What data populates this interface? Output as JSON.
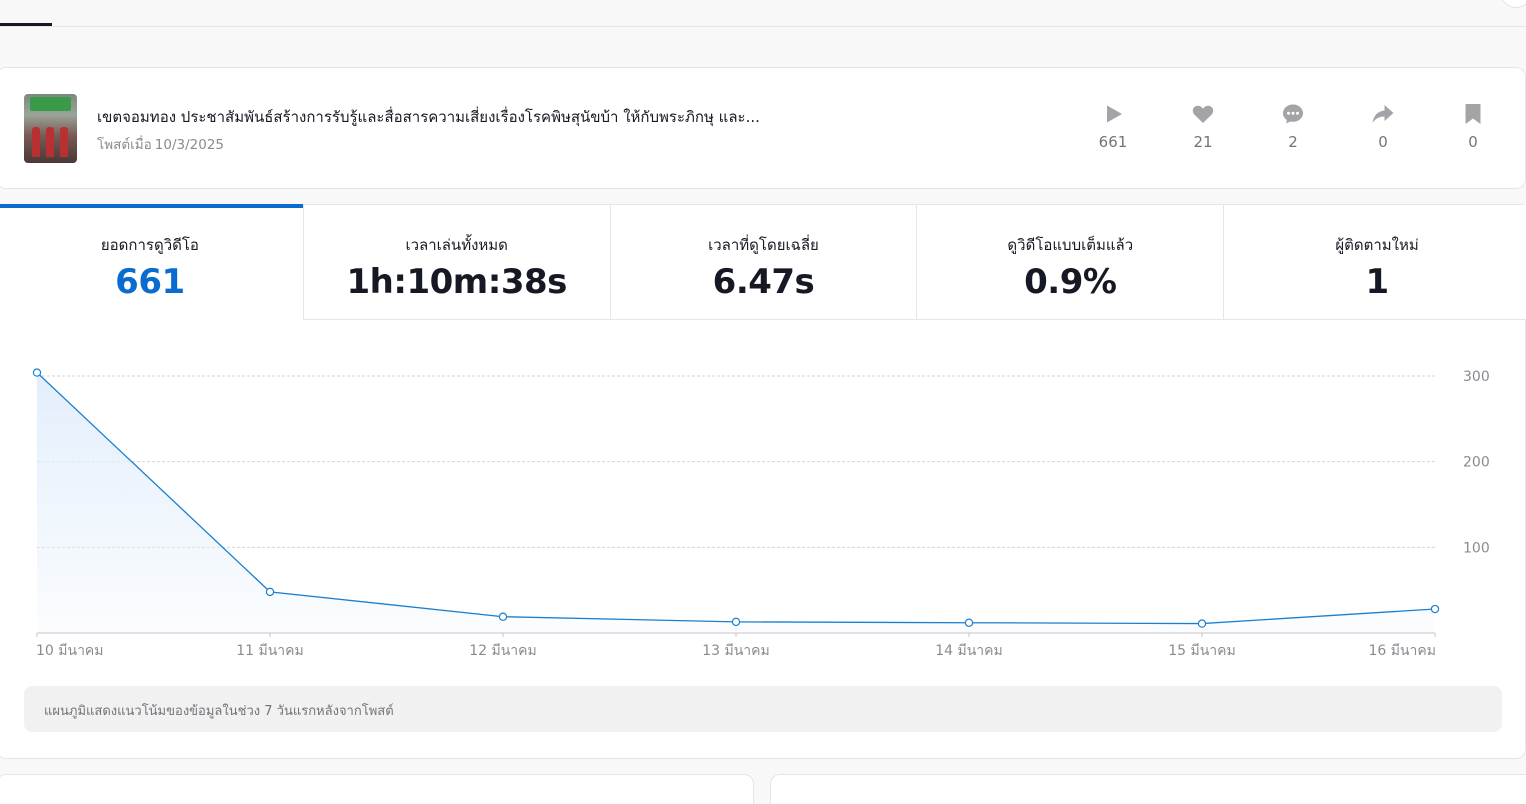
{
  "post": {
    "title": "เขตจอมทอง ประชาสัมพันธ์สร้างการรับรู้และสื่อสารความเสี่ยงเรื่องโรคพิษสุนัขบ้า ให้กับพระภิกษุ และ...",
    "date_label": "โพสต์เมื่อ",
    "date_value": "10/3/2025",
    "stats": {
      "plays": "661",
      "likes": "21",
      "comments": "2",
      "shares": "0",
      "saves": "0"
    }
  },
  "metrics": [
    {
      "label": "ยอดการดูวิดีโอ",
      "value": "661"
    },
    {
      "label": "เวลาเล่นทั้งหมด",
      "value": "1h:10m:38s"
    },
    {
      "label": "เวลาที่ดูโดยเฉลี่ย",
      "value": "6.47s"
    },
    {
      "label": "ดูวิดีโอแบบเต็มแล้ว",
      "value": "0.9%"
    },
    {
      "label": "ผู้ติดตามใหม่",
      "value": "1"
    }
  ],
  "chart_data": {
    "type": "area",
    "categories": [
      "10 มีนาคม",
      "11 มีนาคม",
      "12 มีนาคม",
      "13 มีนาคม",
      "14 มีนาคม",
      "15 มีนาคม",
      "16 มีนาคม"
    ],
    "values": [
      304,
      48,
      19,
      13,
      12,
      11,
      28
    ],
    "y_ticks": [
      100,
      200,
      300
    ],
    "ylim": [
      0,
      300
    ],
    "grid": true,
    "line_color": "#1a7fcf",
    "fill_color": "#e3eefb"
  },
  "chart_note": "แผนภูมิแสดงแนวโน้มของข้อมูลในช่วง 7 วันแรกหลังจากโพสต์"
}
